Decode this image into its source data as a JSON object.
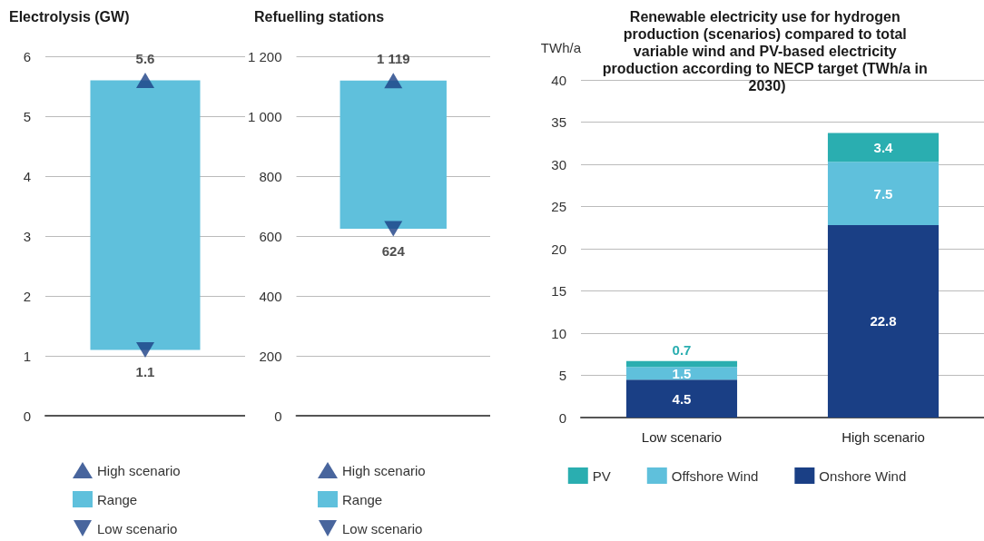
{
  "chart_data": [
    {
      "type": "bar",
      "title": "Electrolysis (GW)",
      "categories": [
        null
      ],
      "ylim": [
        0,
        6
      ],
      "yticks": [
        0,
        1,
        2,
        3,
        4,
        5,
        6
      ],
      "grid": "y",
      "legend": "bottom",
      "marker": "triangle",
      "series": [
        {
          "name": "High scenario",
          "type": "scatter",
          "color": "#1a3f85",
          "values": [
            5.6
          ],
          "value_labels": [
            "5.6"
          ]
        },
        {
          "name": "Range",
          "color": "#5fc0dc",
          "base": [
            1.1
          ],
          "values": [
            4.5
          ]
        },
        {
          "name": "Low scenario",
          "type": "scatter",
          "color": "#1a3f85",
          "values": [
            1.1
          ],
          "value_labels": [
            "1.1"
          ]
        }
      ]
    },
    {
      "type": "bar",
      "title": "Refuelling stations",
      "categories": [
        null
      ],
      "ylim": [
        0,
        1200
      ],
      "yticks": [
        0,
        200,
        400,
        600,
        800,
        {
          "value": 1000,
          "label": "1 000"
        },
        {
          "value": 1200,
          "label": "1 200"
        }
      ],
      "grid": "y",
      "legend": "bottom",
      "marker": "triangle",
      "series": [
        {
          "name": "High scenario",
          "type": "scatter",
          "color": "#1a3f85",
          "values": [
            1119
          ],
          "value_labels": [
            "1 119"
          ]
        },
        {
          "name": "Range",
          "color": "#5fc0dc",
          "base": [
            624
          ],
          "values": [
            495
          ]
        },
        {
          "name": "Low scenario",
          "type": "scatter",
          "color": "#1a3f85",
          "values": [
            624
          ],
          "value_labels": [
            "624"
          ]
        }
      ]
    },
    {
      "type": "bar",
      "title": "Renewable electricity use for hydrogen production (scenarios) compared to total variable wind and PV-based electricity production according to NECP target (TWh/a in 2030)",
      "ylabel": "TWh/a",
      "categories": [
        "Low scenario",
        "High scenario"
      ],
      "stacked": true,
      "ylim": [
        0,
        40
      ],
      "yticks": [
        0,
        5,
        10,
        15,
        20,
        25,
        30,
        35,
        40
      ],
      "grid": "y",
      "legend": "bottom",
      "data_labels": true,
      "series": [
        {
          "name": "Onshore Wind",
          "color": "#1a3f85",
          "values": [
            4.5,
            22.8
          ]
        },
        {
          "name": "Offshore Wind",
          "color": "#5fc0dc",
          "values": [
            1.5,
            7.5
          ]
        },
        {
          "name": "PV",
          "color": "#2aaeb0",
          "values": [
            0.7,
            3.4
          ]
        }
      ]
    }
  ]
}
